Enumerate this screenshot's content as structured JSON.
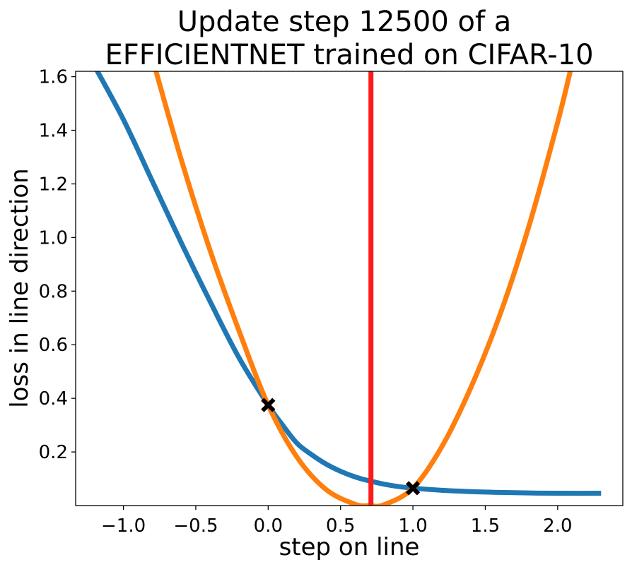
{
  "chart_data": {
    "type": "line",
    "title_lines": [
      "Update step 12500 of a",
      "EFFICIENTNET trained on CIFAR-10"
    ],
    "xlabel": "step on line",
    "ylabel": "loss in line direction",
    "xlim": [
      -1.33,
      2.45
    ],
    "ylim": [
      0.0,
      1.62
    ],
    "xticks": [
      -1.0,
      -0.5,
      0.0,
      0.5,
      1.0,
      1.5,
      2.0
    ],
    "xtick_labels": [
      "−1.0",
      "−0.5",
      "0.0",
      "0.5",
      "1.0",
      "1.5",
      "2.0"
    ],
    "yticks": [
      0.2,
      0.4,
      0.6,
      0.8,
      1.0,
      1.2,
      1.4,
      1.6
    ],
    "ytick_labels": [
      "0.2",
      "0.4",
      "0.6",
      "0.8",
      "1.0",
      "1.2",
      "1.4",
      "1.6"
    ],
    "grid": false,
    "series": [
      {
        "color": "#1f77b4",
        "x": [
          -1.2,
          -1.0,
          -0.8,
          -0.6,
          -0.4,
          -0.2,
          0.0,
          0.1,
          0.2,
          0.3,
          0.4,
          0.5,
          0.6,
          0.7,
          0.8,
          0.9,
          1.0,
          1.2,
          1.4,
          1.6,
          1.8,
          2.0,
          2.3
        ],
        "y": [
          1.64,
          1.44,
          1.21,
          0.98,
          0.76,
          0.55,
          0.375,
          0.3,
          0.232,
          0.19,
          0.155,
          0.128,
          0.107,
          0.092,
          0.08,
          0.071,
          0.065,
          0.057,
          0.052,
          0.049,
          0.047,
          0.046,
          0.046
        ]
      },
      {
        "color": "#ff7f0e",
        "x": [
          -0.78,
          -0.6,
          -0.4,
          -0.2,
          0.0,
          0.2,
          0.4,
          0.6,
          0.7,
          0.8,
          1.0,
          1.2,
          1.4,
          1.6,
          1.8,
          2.0,
          2.1
        ],
        "y": [
          1.63,
          1.29,
          0.95,
          0.65,
          0.375,
          0.18,
          0.06,
          0.005,
          0.0,
          0.003,
          0.065,
          0.22,
          0.44,
          0.71,
          1.04,
          1.43,
          1.65
        ]
      }
    ],
    "vertical_line": {
      "x": 0.71,
      "color": "#ff1a1a"
    },
    "markers": [
      {
        "x": 0.0,
        "y": 0.375,
        "symbol": "X",
        "color": "#000000"
      },
      {
        "x": 1.0,
        "y": 0.065,
        "symbol": "X",
        "color": "#000000"
      }
    ]
  }
}
